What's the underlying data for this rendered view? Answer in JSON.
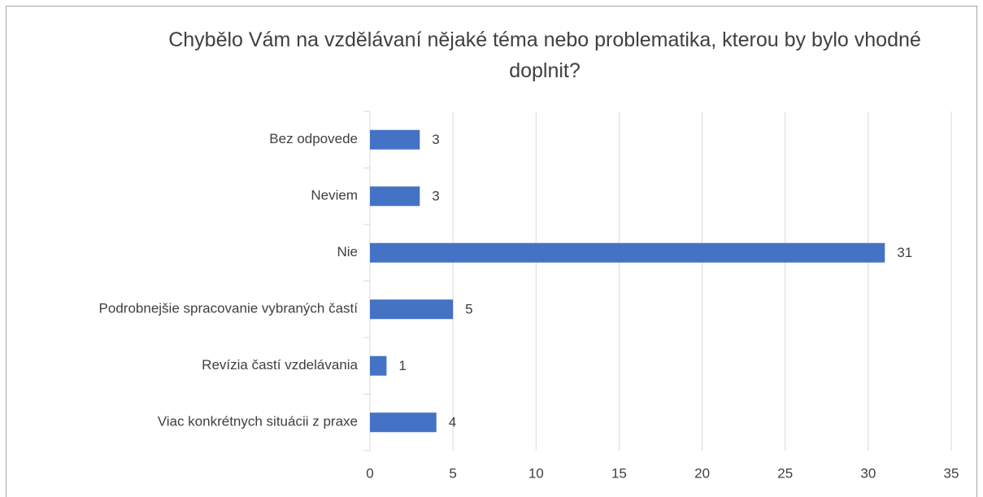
{
  "chart_data": {
    "type": "bar",
    "orientation": "horizontal",
    "title": "Chybělo Vám na vzdělávaní nějaké téma nebo problematika, kterou by bylo vhodné doplnit?",
    "categories": [
      "Bez odpovede",
      "Neviem",
      "Nie",
      "Podrobnejšie spracovanie vybraných častí",
      "Revízia častí vzdelávania",
      "Viac konkrétnych situácii z praxe"
    ],
    "values": [
      3,
      3,
      31,
      5,
      1,
      4
    ],
    "color": "#4472c4",
    "xlim": [
      0,
      35
    ],
    "xticks": [
      0,
      5,
      10,
      15,
      20,
      25,
      30,
      35
    ],
    "grid": true
  }
}
